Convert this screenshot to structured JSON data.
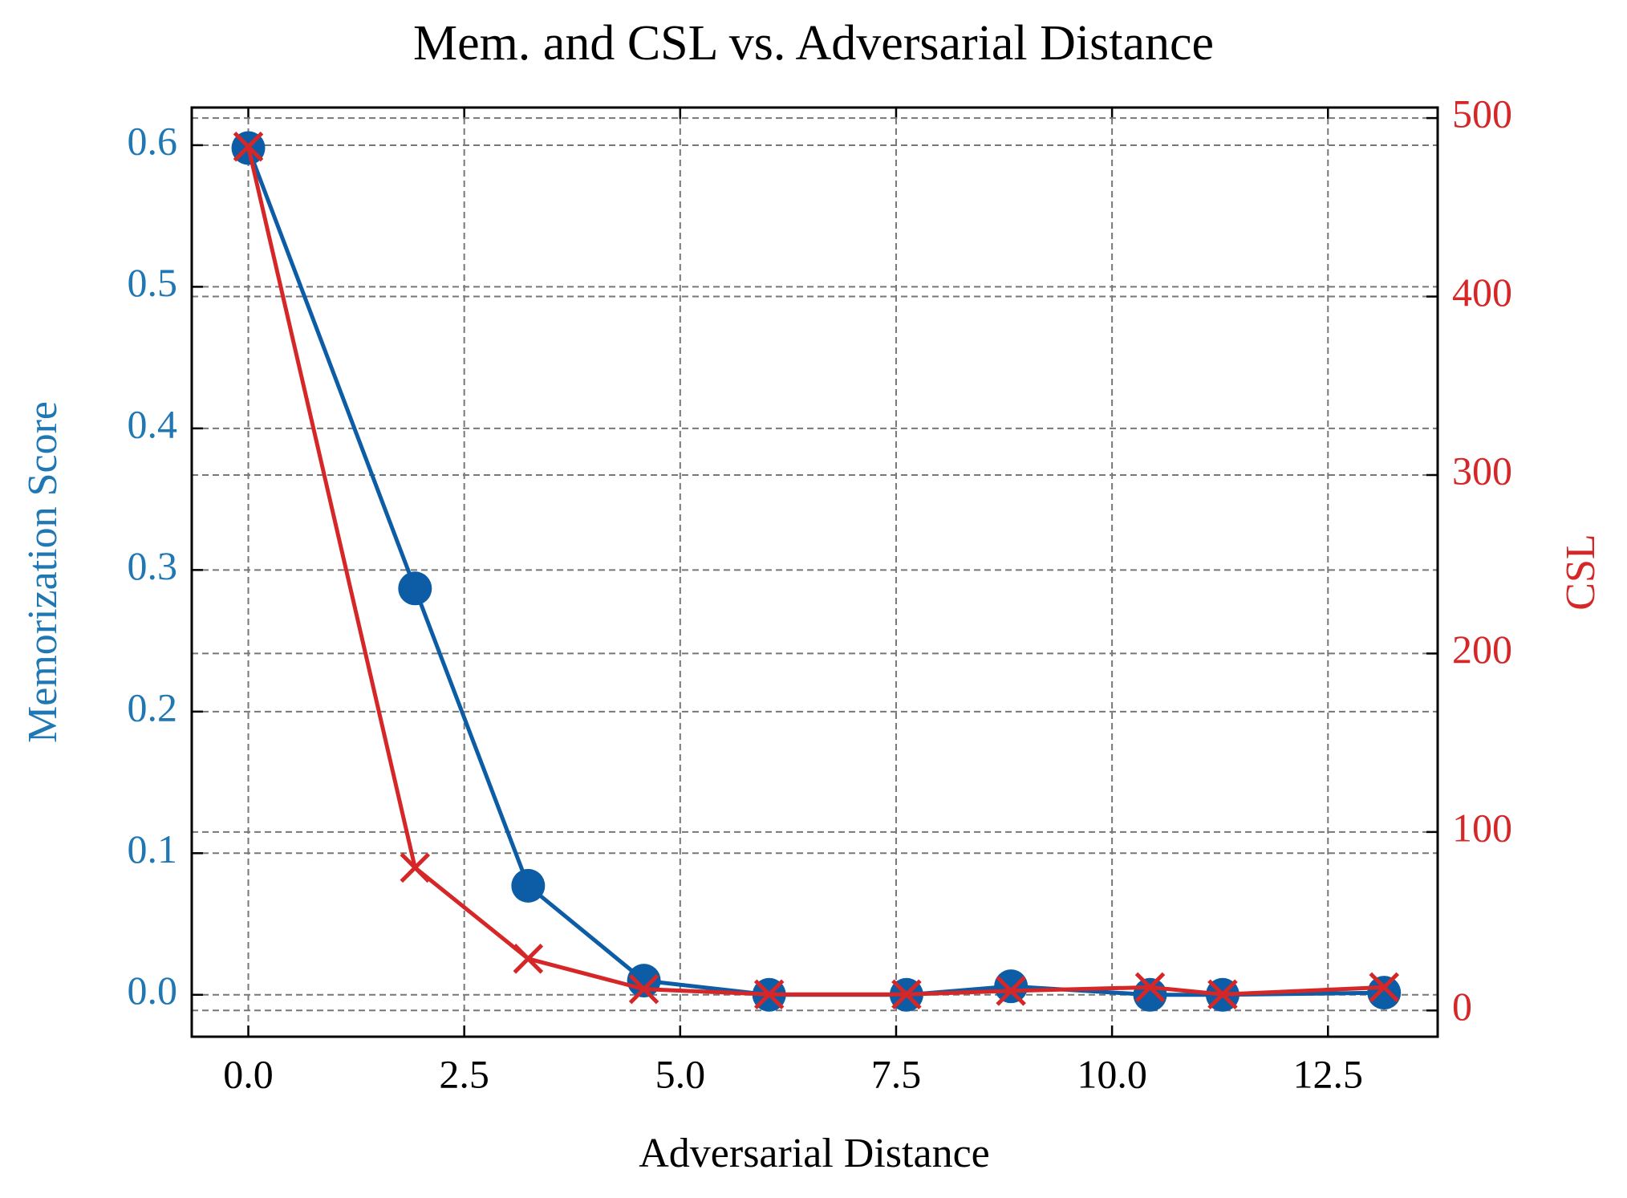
{
  "chart_data": {
    "type": "line",
    "title": "Mem. and CSL vs. Adversarial Distance",
    "xlabel": "Adversarial Distance",
    "ylabel": "Memorization Score",
    "y2label": "CSL",
    "x": [
      0,
      1.93,
      3.24,
      4.58,
      6.03,
      7.62,
      8.83,
      10.44,
      11.28,
      13.15
    ],
    "series": [
      {
        "name": "Memorization Score",
        "color": "#0C5DA5",
        "marker": "circle",
        "axis": "y",
        "values": [
          0.598,
          0.287,
          0.077,
          0.01,
          0.0,
          0.0,
          0.006,
          0.0,
          0.0,
          0.0015
        ]
      },
      {
        "name": "CSL",
        "color": "#d62728",
        "marker": "x",
        "axis": "y2",
        "values": [
          484,
          80,
          29,
          12,
          9,
          9,
          11,
          13,
          9,
          13
        ]
      }
    ],
    "xlim": [
      -0.655,
      13.77
    ],
    "xticks": [
      {
        "value": 0,
        "label": "0.0"
      },
      2.5,
      {
        "value": 5,
        "label": "5.0"
      },
      7.5,
      {
        "value": 10,
        "label": "10.0"
      },
      12.5
    ],
    "ylim": [
      -0.0296,
      0.6266
    ],
    "yticks": [
      {
        "value": 0,
        "label": "0.0"
      },
      0.1,
      0.2,
      0.3,
      0.4,
      0.5,
      0.6
    ],
    "y2lim": [
      -14.7,
      505.9
    ],
    "y2ticks": [
      0,
      100,
      200,
      300,
      400,
      500
    ],
    "ycolor": "#1f77b4",
    "y2color": "#d62728",
    "grid": true
  }
}
